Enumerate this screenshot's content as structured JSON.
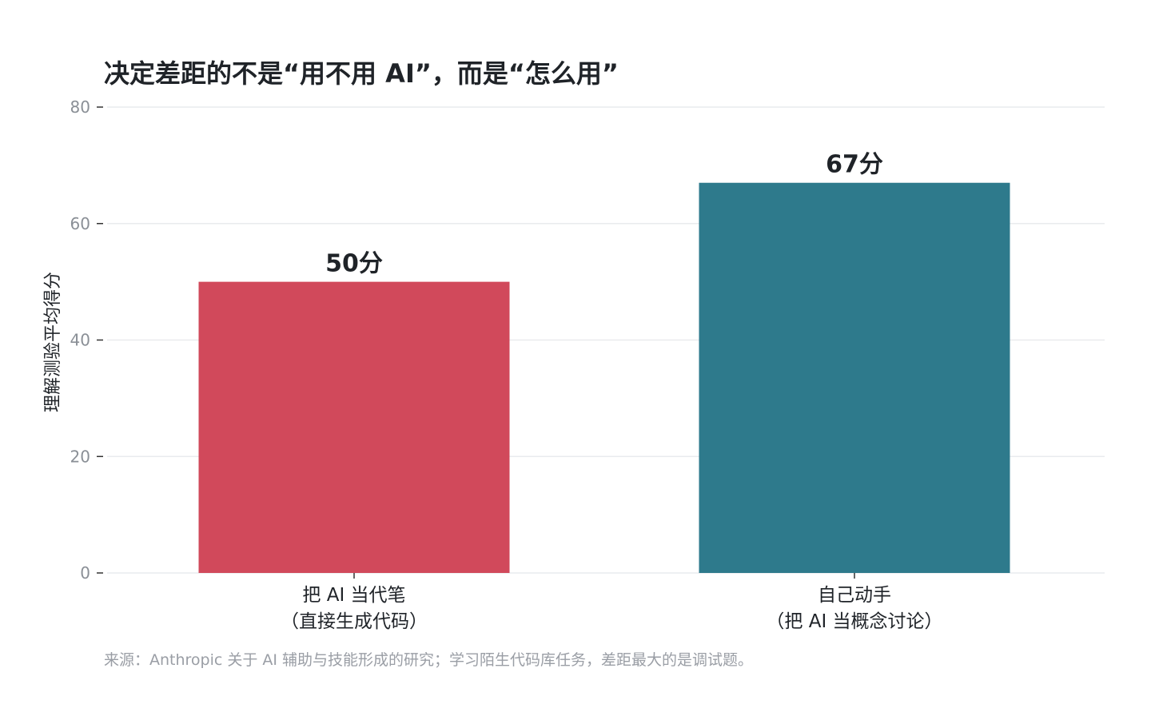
{
  "chart_data": {
    "type": "bar",
    "title": "决定差距的不是“用不用 AI”，而是“怎么用”",
    "ylabel": "理解测验平均得分",
    "xlabel": "",
    "ylim": [
      0,
      80
    ],
    "yticks": [
      0,
      20,
      40,
      60,
      80
    ],
    "grid": true,
    "categories": [
      [
        "把 AI 当代笔",
        "（直接生成代码）"
      ],
      [
        "自己动手",
        "（把 AI 当概念讨论）"
      ]
    ],
    "values": [
      50,
      67
    ],
    "value_labels": [
      "50分",
      "67分"
    ],
    "colors": [
      "#d1495b",
      "#2e7a8c"
    ],
    "source": "来源：Anthropic 关于 AI 辅助与技能形成的研究；学习陌生代码库任务，差距最大的是调试题。"
  }
}
